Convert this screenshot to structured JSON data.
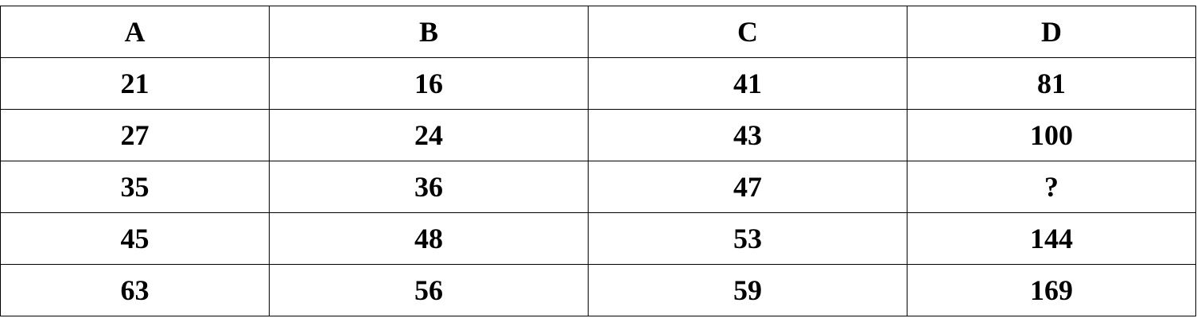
{
  "table": {
    "headers": [
      "A",
      "B",
      "C",
      "D"
    ],
    "rows": [
      [
        "21",
        "16",
        "41",
        "81"
      ],
      [
        "27",
        "24",
        "43",
        "100"
      ],
      [
        "35",
        "36",
        "47",
        "?"
      ],
      [
        "45",
        "48",
        "53",
        "144"
      ],
      [
        "63",
        "56",
        "59",
        "169"
      ]
    ]
  }
}
